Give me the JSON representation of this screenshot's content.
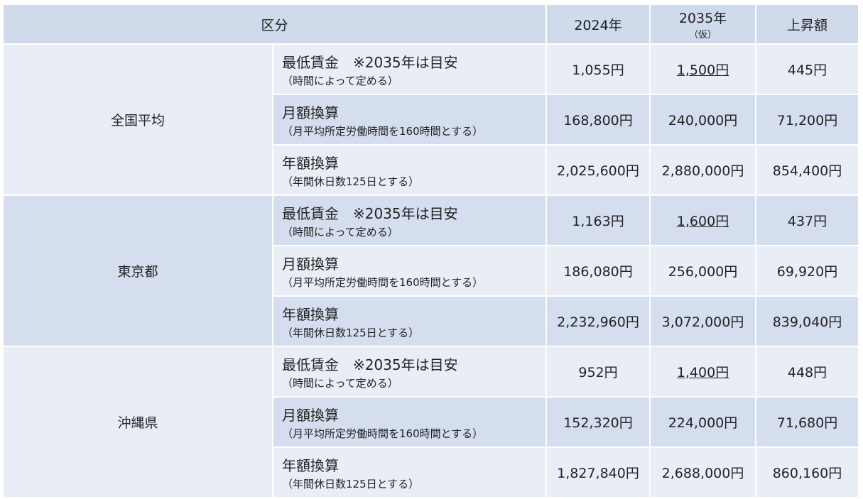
{
  "header": {
    "category": "区分",
    "year_2024": "2024年",
    "year_2035": "2035年",
    "year_2035_note": "（仮）",
    "increase": "上昇額"
  },
  "groups": [
    {
      "region": "全国平均",
      "rows": [
        {
          "item": "最低賃金　※2035年は目安",
          "note": "（時間によって定める）",
          "v2024": "1,055円",
          "v2035": "1,500円",
          "increase": "445円"
        },
        {
          "item": "月額換算",
          "note": "（月平均所定労働時間を160時間とする）",
          "v2024": "168,800円",
          "v2035": "240,000円",
          "increase": "71,200円"
        },
        {
          "item": "年額換算",
          "note": "（年間休日数125日とする）",
          "v2024": "2,025,600円",
          "v2035": "2,880,000円",
          "increase": "854,400円"
        }
      ]
    },
    {
      "region": "東京都",
      "rows": [
        {
          "item": "最低賃金　※2035年は目安",
          "note": "（時間によって定める）",
          "v2024": "1,163円",
          "v2035": "1,600円",
          "increase": "437円"
        },
        {
          "item": "月額換算",
          "note": "（月平均所定労働時間を160時間とする）",
          "v2024": "186,080円",
          "v2035": "256,000円",
          "increase": "69,920円"
        },
        {
          "item": "年額換算",
          "note": "（年間休日数125日とする）",
          "v2024": "2,232,960円",
          "v2035": "3,072,000円",
          "increase": "839,040円"
        }
      ]
    },
    {
      "region": "沖縄県",
      "rows": [
        {
          "item": "最低賃金　※2035年は目安",
          "note": "（時間によって定める）",
          "v2024": "952円",
          "v2035": "1,400円",
          "increase": "448円"
        },
        {
          "item": "月額換算",
          "note": "（月平均所定労働時間を160時間とする）",
          "v2024": "152,320円",
          "v2035": "224,000円",
          "increase": "71,680円"
        },
        {
          "item": "年額換算",
          "note": "（年間休日数125日とする）",
          "v2024": "1,827,840円",
          "v2035": "2,688,000円",
          "increase": "860,160円"
        }
      ]
    }
  ]
}
